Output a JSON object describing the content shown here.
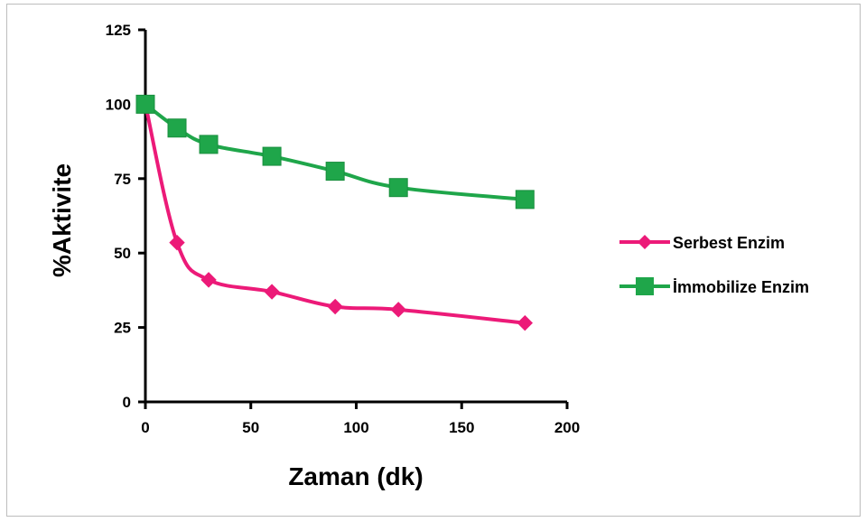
{
  "chart_data": {
    "type": "line",
    "title": "",
    "xlabel": "Zaman (dk)",
    "ylabel": "%Aktivite",
    "xlim": [
      0,
      200
    ],
    "ylim": [
      0,
      125
    ],
    "xticks": [
      0,
      50,
      100,
      150,
      200
    ],
    "yticks": [
      0,
      25,
      50,
      75,
      100,
      125
    ],
    "grid": false,
    "legend_position": "right",
    "series": [
      {
        "name": "Serbest Enzim",
        "color": "#ec1a78",
        "marker": "diamond",
        "x": [
          0,
          15,
          30,
          60,
          90,
          120,
          180
        ],
        "y": [
          100,
          53.5,
          41,
          37,
          32,
          31,
          26.5
        ]
      },
      {
        "name": "İmmobilize Enzim",
        "color": "#1fa64a",
        "marker": "square",
        "x": [
          0,
          15,
          30,
          60,
          90,
          120,
          180
        ],
        "y": [
          100,
          92,
          86.5,
          82.5,
          77.5,
          72,
          68
        ]
      }
    ]
  }
}
